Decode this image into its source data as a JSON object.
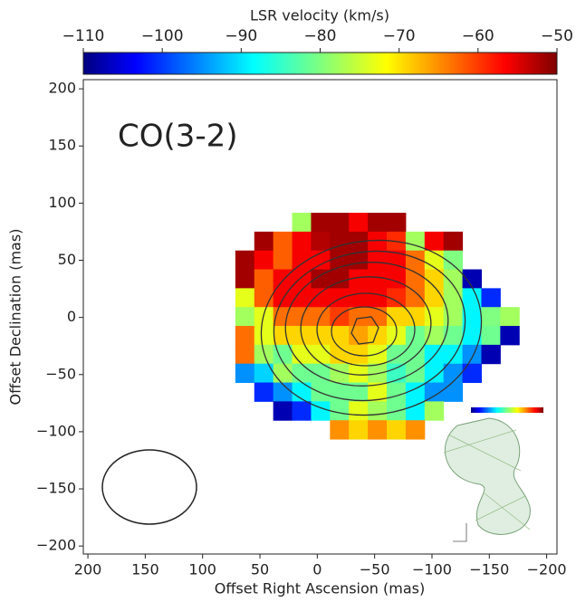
{
  "chart_data": {
    "type": "heatmap",
    "annotation": "CO(3-2)",
    "xlabel": "Offset Right Ascension (mas)",
    "ylabel": "Offset Declination (mas)",
    "colorbar_label": "LSR velocity (km/s)",
    "colormap": "jet",
    "clim": [
      -110,
      -50
    ],
    "cticks": [
      {
        "value": -110,
        "label": "−110"
      },
      {
        "value": -100,
        "label": "−100"
      },
      {
        "value": -90,
        "label": "−90"
      },
      {
        "value": -80,
        "label": "−80"
      },
      {
        "value": -70,
        "label": "−70"
      },
      {
        "value": -60,
        "label": "−60"
      },
      {
        "value": -50,
        "label": "−50"
      }
    ],
    "xlim": [
      204,
      -209
    ],
    "ylim": [
      -207,
      208
    ],
    "xticks": [
      200,
      150,
      100,
      50,
      0,
      {
        "value": -50,
        "label": "−50"
      },
      {
        "value": -100,
        "label": "−100"
      },
      {
        "value": -150,
        "label": "−150"
      },
      {
        "value": -200,
        "label": "−200"
      }
    ],
    "yticks": [
      {
        "value": -200,
        "label": "−200"
      },
      {
        "value": -150,
        "label": "−150"
      },
      {
        "value": -100,
        "label": "−100"
      },
      {
        "value": -50,
        "label": "−50"
      },
      0,
      50,
      100,
      150,
      200
    ],
    "x": [
      63.2,
      46.7,
      30.2,
      13.7,
      -2.8,
      -19.3,
      -35.8,
      -52.3,
      -68.8,
      -85.3,
      -101.8,
      -118.3,
      -134.8,
      -151.3,
      -167.8
    ],
    "y": [
      83.3,
      66.8,
      50.3,
      33.8,
      17.3,
      0.8,
      -15.7,
      -32.2,
      -48.7,
      -65.2,
      -81.7,
      -98.2
    ],
    "z": [
      [
        null,
        null,
        null,
        -78,
        -52,
        -52,
        -57,
        -52,
        -52,
        null,
        null,
        null,
        null,
        null,
        null
      ],
      [
        null,
        -52,
        -63,
        -57,
        -53,
        -52,
        -52,
        -57,
        -60,
        -78,
        -57,
        -52,
        null,
        null,
        null
      ],
      [
        -52,
        -57,
        -63,
        -57,
        -57,
        -52,
        -52,
        -57,
        -57,
        -64,
        -74,
        -80,
        null,
        null,
        null
      ],
      [
        -52,
        -63,
        -57,
        -57,
        -52,
        -52,
        -57,
        -57,
        -57,
        -64,
        -70,
        -78,
        -107,
        null,
        null
      ],
      [
        -74,
        -63,
        -57,
        -57,
        -57,
        -57,
        -57,
        -57,
        -60,
        -64,
        -70,
        -78,
        -88,
        -100,
        null
      ],
      [
        -78,
        -74,
        -64,
        -64,
        -64,
        -61,
        -64,
        -64,
        -70,
        -70,
        -74,
        -78,
        -88,
        -80,
        -78
      ],
      [
        -64,
        -74,
        -70,
        -70,
        -70,
        -70,
        -67,
        -70,
        -74,
        -81,
        -78,
        -81,
        -88,
        -81,
        -107
      ],
      [
        -64,
        -78,
        -81,
        -74,
        -74,
        -70,
        -70,
        -74,
        -81,
        -81,
        -88,
        -88,
        -94,
        -107,
        null
      ],
      [
        -94,
        -90,
        -78,
        -81,
        -81,
        -78,
        -74,
        -78,
        -84,
        -81,
        -88,
        -94,
        -100,
        null,
        null
      ],
      [
        null,
        -100,
        -94,
        -88,
        -81,
        -81,
        -81,
        -74,
        -81,
        -88,
        -94,
        -94,
        null,
        null,
        null
      ],
      [
        null,
        null,
        -107,
        -100,
        -88,
        -81,
        -74,
        -78,
        -81,
        -88,
        -78,
        null,
        null,
        null,
        null
      ],
      [
        null,
        null,
        null,
        null,
        null,
        -66,
        -70,
        -66,
        -70,
        -66,
        null,
        null,
        null,
        null,
        null
      ]
    ]
  }
}
